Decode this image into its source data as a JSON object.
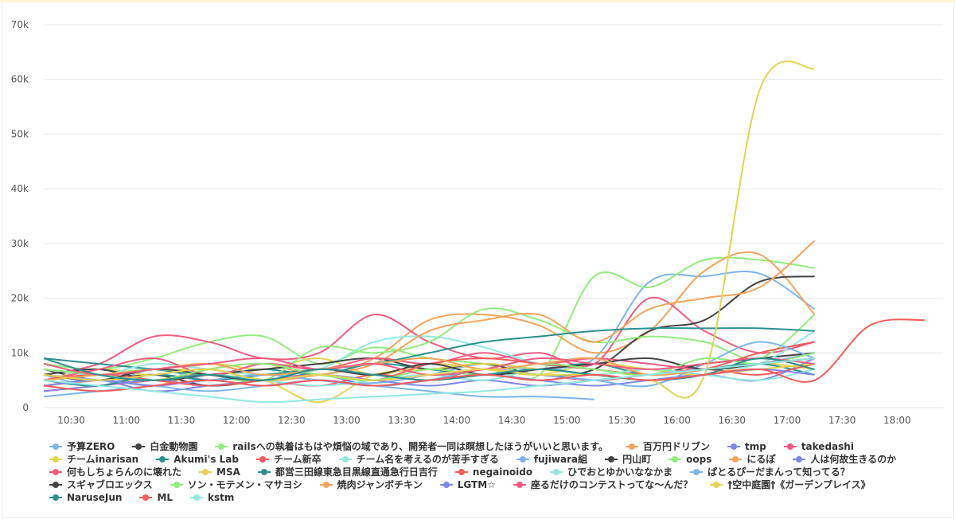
{
  "chart_data": {
    "type": "line",
    "title": "",
    "xlabel": "",
    "ylabel": "",
    "ylim": [
      0,
      70000
    ],
    "xlim": [
      "10:15",
      "18:25"
    ],
    "grid": true,
    "legend_position": "bottom",
    "y_ticks": [
      "0",
      "10k",
      "20k",
      "30k",
      "40k",
      "50k",
      "60k",
      "70k"
    ],
    "y_tick_values": [
      0,
      10000,
      20000,
      30000,
      40000,
      50000,
      60000,
      70000
    ],
    "x_ticks": [
      "10:30",
      "11:00",
      "11:30",
      "12:00",
      "12:30",
      "13:00",
      "13:30",
      "14:00",
      "14:30",
      "15:00",
      "15:30",
      "16:00",
      "16:30",
      "17:00",
      "17:30",
      "18:00"
    ],
    "x": [
      "10:15",
      "10:45",
      "11:15",
      "11:45",
      "12:15",
      "12:45",
      "13:15",
      "13:45",
      "14:15",
      "14:45",
      "15:15",
      "15:45",
      "16:15",
      "16:45",
      "17:15",
      "17:45",
      "18:15"
    ],
    "series": [
      {
        "name": "予算ZERO",
        "color": "#7cb5ec",
        "values": [
          6000,
          4000,
          7000,
          5000,
          6000,
          5000,
          4500,
          6000,
          8000,
          7000,
          9000,
          23000,
          24000,
          24500,
          18000,
          null,
          null
        ]
      },
      {
        "name": "白金動物園",
        "color": "#434348",
        "values": [
          7000,
          5000,
          6000,
          4000,
          5000,
          6000,
          5000,
          7000,
          6000,
          8000,
          7000,
          6000,
          8000,
          9000,
          10000,
          null,
          null
        ]
      },
      {
        "name": "railsへの執着はもはや煩悩の域であり、開発者一同は瞑想したほうがいいと思います。",
        "color": "#90ed7d",
        "values": [
          8000,
          7000,
          9000,
          12000,
          13000,
          8000,
          11000,
          9000,
          8000,
          6000,
          24000,
          22000,
          27000,
          27000,
          25500,
          null,
          null
        ]
      },
      {
        "name": "百万円ドリブン",
        "color": "#f7a35c",
        "values": [
          5000,
          6000,
          4000,
          7000,
          8000,
          6000,
          9000,
          16000,
          17000,
          15000,
          10000,
          14000,
          25000,
          28000,
          17000,
          null,
          null
        ]
      },
      {
        "name": "tmp",
        "color": "#8085e9",
        "values": [
          4000,
          5000,
          3000,
          4000,
          5000,
          6000,
          4000,
          5000,
          6000,
          5000,
          4000,
          5000,
          6000,
          5000,
          9000,
          null,
          null
        ]
      },
      {
        "name": "takedashi",
        "color": "#f15c80",
        "values": [
          6000,
          8000,
          13000,
          12000,
          9000,
          10000,
          17000,
          12000,
          9000,
          10000,
          8000,
          20000,
          14000,
          10000,
          12000,
          null,
          null
        ]
      },
      {
        "name": "チームinarisan",
        "color": "#e4d354",
        "values": [
          5000,
          7000,
          6000,
          8000,
          7000,
          9000,
          6000,
          8000,
          7000,
          6000,
          8000,
          7000,
          6000,
          8000,
          7000,
          null,
          null
        ]
      },
      {
        "name": "Akumi's Lab",
        "color": "#2b908f",
        "values": [
          9000,
          8000,
          7000,
          6000,
          7000,
          6000,
          8000,
          7000,
          6000,
          7000,
          8000,
          6000,
          7000,
          8000,
          6000,
          null,
          null
        ]
      },
      {
        "name": "チーム新卒",
        "color": "#f45b5b",
        "values": [
          3000,
          4000,
          5000,
          6000,
          5000,
          4000,
          6000,
          5000,
          7000,
          6000,
          5000,
          6000,
          7000,
          6000,
          8000,
          null,
          null
        ]
      },
      {
        "name": "チーム名を考えるのが苦手すぎる",
        "color": "#91e8e1",
        "values": [
          7000,
          6000,
          8000,
          7000,
          6000,
          7000,
          12000,
          13000,
          11000,
          8000,
          7000,
          6000,
          7000,
          8000,
          14000,
          null,
          null
        ]
      },
      {
        "name": "fujiwara組",
        "color": "#7cb5ec",
        "values": [
          6000,
          5000,
          4000,
          3000,
          4000,
          5000,
          4000,
          3000,
          2000,
          2000,
          1500,
          null,
          null,
          null,
          null,
          null,
          null
        ]
      },
      {
        "name": "円山町",
        "color": "#434348",
        "values": [
          6000,
          7000,
          5000,
          6000,
          7000,
          8000,
          9000,
          7000,
          8000,
          6000,
          7000,
          14000,
          16000,
          23000,
          24000,
          null,
          null
        ]
      },
      {
        "name": "oops",
        "color": "#90ed7d",
        "values": [
          5000,
          6000,
          7000,
          6000,
          5000,
          11000,
          10000,
          12000,
          18000,
          16000,
          12000,
          13000,
          12000,
          9000,
          17000,
          null,
          null
        ]
      },
      {
        "name": "にるぽ",
        "color": "#f7a35c",
        "values": [
          4000,
          5000,
          6000,
          7000,
          5000,
          6000,
          8000,
          14000,
          16000,
          17000,
          12000,
          18000,
          20000,
          22000,
          30500,
          null,
          null
        ]
      },
      {
        "name": "人は何故生きるのか",
        "color": "#8085e9",
        "values": [
          3000,
          4000,
          5000,
          4000,
          5000,
          6000,
          5000,
          4000,
          5000,
          4000,
          5000,
          6000,
          7000,
          8000,
          10000,
          null,
          null
        ]
      },
      {
        "name": "何もしちょらんのに壊れた",
        "color": "#f15c80",
        "values": [
          5000,
          7000,
          9000,
          6000,
          8000,
          7000,
          9000,
          8000,
          10000,
          8000,
          9000,
          8000,
          7000,
          8000,
          9000,
          null,
          null
        ]
      },
      {
        "name": "MSA",
        "color": "#e4d354",
        "values": [
          6000,
          5000,
          7000,
          6000,
          5000,
          1000,
          6000,
          7000,
          8000,
          7000,
          6000,
          5000,
          6000,
          7000,
          8000,
          null,
          null
        ]
      },
      {
        "name": "都営三田線東急目黒線直通急行日吉行",
        "color": "#2b908f",
        "values": [
          5000,
          4000,
          6000,
          5000,
          6000,
          7000,
          8000,
          10000,
          12000,
          13000,
          14000,
          14500,
          14500,
          14500,
          14000,
          null,
          null
        ]
      },
      {
        "name": "negainoido",
        "color": "#f45b5b",
        "values": [
          5000,
          6000,
          5000,
          4000,
          5000,
          6000,
          5000,
          8000,
          9000,
          8000,
          7000,
          6000,
          7000,
          10000,
          12000,
          null,
          null
        ]
      },
      {
        "name": "ひでおとゆかいななかま",
        "color": "#91e8e1",
        "values": [
          7000,
          6000,
          5000,
          6000,
          5000,
          4000,
          5000,
          6000,
          5000,
          7000,
          6000,
          7000,
          6000,
          5000,
          7000,
          null,
          null
        ]
      },
      {
        "name": "ぱとるぴーだまんって知ってる？",
        "color": "#7cb5ec",
        "values": [
          2000,
          3000,
          4000,
          5000,
          6000,
          5000,
          4000,
          5000,
          7000,
          6000,
          5000,
          4000,
          8000,
          12000,
          9000,
          null,
          null
        ]
      },
      {
        "name": "スギャブロエックス",
        "color": "#434348",
        "values": [
          6000,
          5000,
          7000,
          6000,
          5000,
          7000,
          6000,
          8000,
          6000,
          7000,
          8000,
          9000,
          7000,
          8000,
          9000,
          null,
          null
        ]
      },
      {
        "name": "ソン・モテメン・マサヨシ",
        "color": "#90ed7d",
        "values": [
          7000,
          6000,
          5000,
          7000,
          8000,
          6000,
          5000,
          7000,
          6000,
          8000,
          7000,
          6000,
          9000,
          8000,
          10000,
          null,
          null
        ]
      },
      {
        "name": "焼肉ジャンボチキン",
        "color": "#f7a35c",
        "values": [
          5000,
          6000,
          7000,
          8000,
          6000,
          7000,
          8000,
          9000,
          7000,
          8000,
          9000,
          6000,
          7000,
          8000,
          9000,
          null,
          null
        ]
      },
      {
        "name": "LGTM☆",
        "color": "#8085e9",
        "values": [
          4000,
          5000,
          4000,
          5000,
          4000,
          5000,
          4000,
          5000,
          6000,
          5000,
          6000,
          5000,
          6000,
          7000,
          6000,
          null,
          null
        ]
      },
      {
        "name": "座るだけのコンテストってな〜んだ？",
        "color": "#f15c80",
        "values": [
          8000,
          6000,
          7000,
          8000,
          9000,
          7000,
          8000,
          6000,
          7000,
          9000,
          8000,
          7000,
          8000,
          9000,
          8000,
          null,
          null
        ]
      },
      {
        "name": "†空中庭園†《ガーデンプレイス》",
        "color": "#e4d354",
        "values": [
          6000,
          5000,
          6000,
          7000,
          5000,
          6000,
          5000,
          6000,
          7000,
          6000,
          6000,
          5000,
          6000,
          58000,
          62000,
          null,
          null
        ]
      },
      {
        "name": "NaruseJun",
        "color": "#2b908f",
        "values": [
          9000,
          6000,
          5000,
          6000,
          5000,
          7000,
          6000,
          5000,
          6000,
          7000,
          6000,
          5000,
          6000,
          9000,
          7000,
          null,
          null
        ]
      },
      {
        "name": "ML",
        "color": "#f45b5b",
        "values": [
          4000,
          3000,
          4000,
          5000,
          4000,
          5000,
          4000,
          5000,
          6000,
          5000,
          6000,
          5000,
          6000,
          7000,
          5000,
          15000,
          16000
        ]
      },
      {
        "name": "kstm",
        "color": "#91e8e1",
        "values": [
          5000,
          4000,
          3000,
          2000,
          1000,
          1500,
          2000,
          2500,
          3000,
          4000,
          5000,
          6000,
          7000,
          8000,
          9000,
          null,
          null
        ]
      }
    ]
  }
}
